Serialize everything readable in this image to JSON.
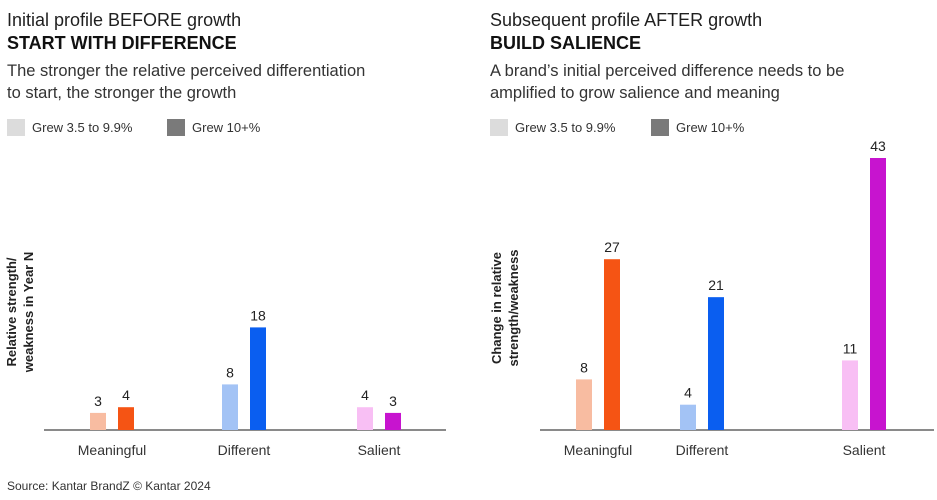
{
  "chart_data": [
    {
      "type": "bar",
      "title": "Initial profile BEFORE growth",
      "subtitle": "START WITH DIFFERENCE",
      "description": [
        "The stronger the relative perceived differentiation",
        "to start, the stronger the growth"
      ],
      "ylabel": [
        "Relative strength/",
        "weakness in Year N"
      ],
      "xlabel": "",
      "categories": [
        "Meaningful",
        "Different",
        "Salient"
      ],
      "series": [
        {
          "name": "Grew 3.5 to 9.9%",
          "values": [
            3,
            8,
            4
          ],
          "colors": [
            "#f8bca1",
            "#a3c3f5",
            "#f8bff4"
          ]
        },
        {
          "name": "Grew 10+%",
          "values": [
            4,
            18,
            3
          ],
          "colors": [
            "#f55414",
            "#0a5ef0",
            "#c714cf"
          ]
        }
      ],
      "legend": [
        {
          "label": "Grew 3.5 to 9.9%",
          "color": "#dcdcdc"
        },
        {
          "label": "Grew 10+%",
          "color": "#7a7a7a"
        }
      ],
      "ylim": [
        0,
        50
      ]
    },
    {
      "type": "bar",
      "title": "Subsequent profile AFTER growth",
      "subtitle": "BUILD SALIENCE",
      "description": [
        "A brand’s initial perceived difference needs to be",
        "amplified to grow salience and meaning"
      ],
      "ylabel": [
        "Change in relative",
        "strength/weakness"
      ],
      "xlabel": "",
      "categories": [
        "Meaningful",
        "Different",
        "Salient"
      ],
      "series": [
        {
          "name": "Grew 3.5 to 9.9%",
          "values": [
            8,
            4,
            11
          ],
          "colors": [
            "#f8bca1",
            "#a3c3f5",
            "#f8bff4"
          ]
        },
        {
          "name": "Grew 10+%",
          "values": [
            27,
            21,
            43
          ],
          "colors": [
            "#f55414",
            "#0a5ef0",
            "#c714cf"
          ]
        }
      ],
      "legend": [
        {
          "label": "Grew 3.5 to 9.9%",
          "color": "#dcdcdc"
        },
        {
          "label": "Grew 10+%",
          "color": "#7a7a7a"
        }
      ],
      "ylim": [
        0,
        43
      ]
    }
  ],
  "source": "Source: Kantar BrandZ © Kantar 2024",
  "colors": {
    "axis": "#444444",
    "text": "#222222"
  }
}
